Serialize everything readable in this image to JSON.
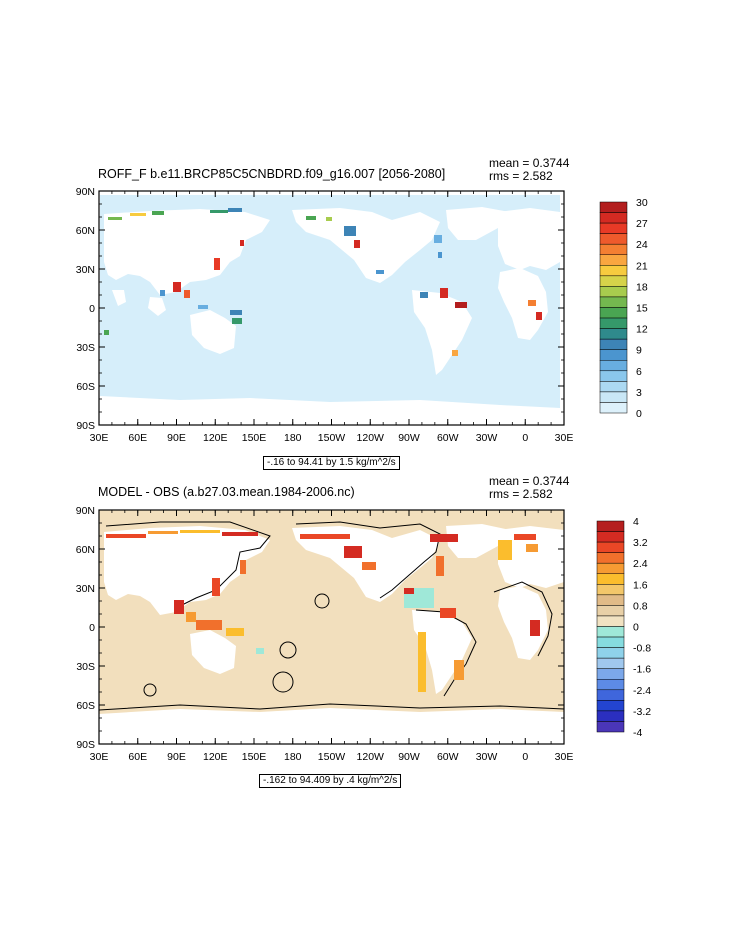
{
  "panels": [
    {
      "title": "ROFF_F b.e11.BRCP85C5CNBDRD.f09_g16.007 [2056-2080]",
      "mean": "mean = 0.3744",
      "rms": "rms = 2.582",
      "range": "-.16 to 94.41 by 1.5 kg/m^2/s"
    },
    {
      "title": "MODEL - OBS (a.b27.03.mean.1984-2006.nc)",
      "mean": "mean = 0.3744",
      "rms": "rms = 2.582",
      "range": "-.162 to 94.409 by .4 kg/m^2/s"
    }
  ],
  "axes": {
    "lat_ticks": [
      "90N",
      "60N",
      "30N",
      "0",
      "30S",
      "60S",
      "90S"
    ],
    "lon_ticks": [
      "30E",
      "60E",
      "90E",
      "120E",
      "150E",
      "180",
      "150W",
      "120W",
      "90W",
      "60W",
      "30W",
      "0",
      "30E"
    ]
  },
  "colorbars": [
    {
      "labels": [
        "30",
        "27",
        "24",
        "21",
        "18",
        "15",
        "12",
        "9",
        "6",
        "3",
        "0"
      ],
      "colors": [
        "#b31e1e",
        "#d42a22",
        "#e83a26",
        "#ee5a2c",
        "#f47f32",
        "#f9a640",
        "#f7cb3f",
        "#d6d34a",
        "#a8cc4e",
        "#74b84f",
        "#4aa552",
        "#35996a",
        "#2f8a8c",
        "#3d84b6",
        "#4b95cf",
        "#68aee0",
        "#8ac7ec",
        "#acd9f2",
        "#c9e7f6",
        "#ddf1fb"
      ]
    },
    {
      "labels": [
        "4",
        "3.2",
        "2.4",
        "1.6",
        "0.8",
        "0",
        "-0.8",
        "-1.6",
        "-2.4",
        "-3.2",
        "-4"
      ],
      "colors": [
        "#b51f1f",
        "#d42b22",
        "#ea4726",
        "#f1702c",
        "#f69b33",
        "#fbbd2d",
        "#f3c76a",
        "#e1bb88",
        "#e8d0a7",
        "#f1e2c2",
        "#9fe8d8",
        "#86dcdf",
        "#8fd2ea",
        "#a0c8ee",
        "#7ca8ea",
        "#5d8be6",
        "#3f66dc",
        "#2344d0",
        "#2b2fc0",
        "#4a36b8"
      ]
    }
  ],
  "colors": {
    "ocean_shade": "#d6eefa",
    "land_shade": "#f2dfbd",
    "frame": "#000000"
  }
}
